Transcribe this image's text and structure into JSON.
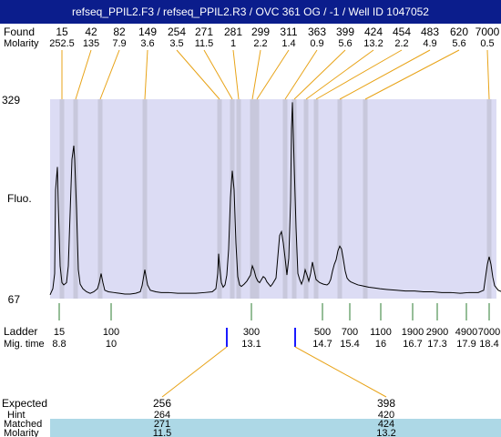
{
  "title": "refseq_PPIL2.F3 / refseq_PPIL2.R3 / OVC 361 OG / -1 / Well ID 1047052",
  "labels": {
    "found": "Found",
    "molarity": "Molarity",
    "fluo": "Fluo.",
    "ladder": "Ladder",
    "mig_time": "Mig. time",
    "expected": "Expected",
    "hint": "Hint",
    "matched": "Matched",
    "molarity_bottom": "Molarity"
  },
  "colors": {
    "title_bg": "#0b1d8c",
    "plot_bg": "#dcdcf4",
    "band": "#c8c8dc",
    "found_line": "#e8a317",
    "ladder_line": "#2e7d32",
    "marker": "#1a1aff",
    "row_highlight": "#add8e6"
  },
  "chart_data": {
    "type": "line",
    "ylim": [
      67,
      329
    ],
    "yticks": [
      "329",
      "67"
    ],
    "found_peaks": [
      {
        "size": "15",
        "molarity": "252.5"
      },
      {
        "size": "42",
        "molarity": "135"
      },
      {
        "size": "82",
        "molarity": "7.9"
      },
      {
        "size": "149",
        "molarity": "3.6"
      },
      {
        "size": "254",
        "molarity": "3.5"
      },
      {
        "size": "271",
        "molarity": "11.5"
      },
      {
        "size": "281",
        "molarity": "1"
      },
      {
        "size": "299",
        "molarity": "2.2"
      },
      {
        "size": "311",
        "molarity": "1.4"
      },
      {
        "size": "363",
        "molarity": "0.9"
      },
      {
        "size": "399",
        "molarity": "5.6"
      },
      {
        "size": "424",
        "molarity": "13.2"
      },
      {
        "size": "454",
        "molarity": "2.2"
      },
      {
        "size": "483",
        "molarity": "4.9"
      },
      {
        "size": "620",
        "molarity": "5.6"
      },
      {
        "size": "7000",
        "molarity": "0.5"
      }
    ],
    "ladder": [
      {
        "size": "15",
        "time": "8.8"
      },
      {
        "size": "100",
        "time": "10"
      },
      {
        "size": "300",
        "time": "13.1"
      },
      {
        "size": "500",
        "time": "14.7"
      },
      {
        "size": "700",
        "time": "15.4"
      },
      {
        "size": "1100",
        "time": "16"
      },
      {
        "size": "1900",
        "time": "16.7"
      },
      {
        "size": "2900",
        "time": "17.3"
      },
      {
        "size": "4900",
        "time": "17.9"
      },
      {
        "size": "7000",
        "time": "18.4"
      }
    ],
    "expected": [
      {
        "expected": "256",
        "hint": "264",
        "matched": "271",
        "molarity": "11.5"
      },
      {
        "expected": "398",
        "hint": "420",
        "matched": "424",
        "molarity": "13.2"
      }
    ],
    "trace": [
      [
        0,
        72
      ],
      [
        3,
        80
      ],
      [
        5,
        100
      ],
      [
        6,
        210
      ],
      [
        8,
        240
      ],
      [
        9,
        190
      ],
      [
        11,
        110
      ],
      [
        13,
        88
      ],
      [
        15,
        85
      ],
      [
        18,
        88
      ],
      [
        20,
        110
      ],
      [
        22,
        180
      ],
      [
        24,
        250
      ],
      [
        26,
        268
      ],
      [
        27,
        250
      ],
      [
        29,
        185
      ],
      [
        31,
        105
      ],
      [
        33,
        86
      ],
      [
        36,
        80
      ],
      [
        40,
        76
      ],
      [
        44,
        74
      ],
      [
        48,
        76
      ],
      [
        52,
        80
      ],
      [
        54,
        88
      ],
      [
        56,
        100
      ],
      [
        58,
        88
      ],
      [
        60,
        78
      ],
      [
        64,
        76
      ],
      [
        70,
        75
      ],
      [
        76,
        74
      ],
      [
        82,
        73
      ],
      [
        88,
        73
      ],
      [
        94,
        74
      ],
      [
        99,
        76
      ],
      [
        101,
        84
      ],
      [
        103,
        98
      ],
      [
        104,
        105
      ],
      [
        105,
        98
      ],
      [
        107,
        85
      ],
      [
        110,
        78
      ],
      [
        116,
        76
      ],
      [
        122,
        75
      ],
      [
        130,
        75
      ],
      [
        140,
        74
      ],
      [
        150,
        74
      ],
      [
        160,
        74
      ],
      [
        170,
        75
      ],
      [
        178,
        76
      ],
      [
        182,
        80
      ],
      [
        184,
        100
      ],
      [
        185,
        126
      ],
      [
        186,
        110
      ],
      [
        188,
        88
      ],
      [
        190,
        82
      ],
      [
        192,
        85
      ],
      [
        194,
        98
      ],
      [
        196,
        132
      ],
      [
        198,
        200
      ],
      [
        200,
        235
      ],
      [
        202,
        210
      ],
      [
        204,
        140
      ],
      [
        206,
        96
      ],
      [
        208,
        85
      ],
      [
        210,
        83
      ],
      [
        213,
        86
      ],
      [
        216,
        90
      ],
      [
        218,
        94
      ],
      [
        220,
        98
      ],
      [
        222,
        110
      ],
      [
        224,
        104
      ],
      [
        226,
        95
      ],
      [
        228,
        90
      ],
      [
        230,
        88
      ],
      [
        232,
        92
      ],
      [
        234,
        96
      ],
      [
        236,
        94
      ],
      [
        238,
        89
      ],
      [
        240,
        86
      ],
      [
        242,
        83
      ],
      [
        244,
        86
      ],
      [
        248,
        94
      ],
      [
        252,
        150
      ],
      [
        254,
        155
      ],
      [
        256,
        140
      ],
      [
        258,
        120
      ],
      [
        260,
        98
      ],
      [
        262,
        120
      ],
      [
        264,
        195
      ],
      [
        265,
        290
      ],
      [
        266,
        325
      ],
      [
        268,
        240
      ],
      [
        270,
        160
      ],
      [
        272,
        100
      ],
      [
        274,
        92
      ],
      [
        276,
        86
      ],
      [
        278,
        93
      ],
      [
        280,
        105
      ],
      [
        282,
        98
      ],
      [
        284,
        90
      ],
      [
        286,
        100
      ],
      [
        288,
        115
      ],
      [
        290,
        103
      ],
      [
        292,
        92
      ],
      [
        296,
        88
      ],
      [
        300,
        86
      ],
      [
        304,
        85
      ],
      [
        306,
        87
      ],
      [
        308,
        92
      ],
      [
        310,
        103
      ],
      [
        312,
        112
      ],
      [
        314,
        118
      ],
      [
        316,
        130
      ],
      [
        318,
        136
      ],
      [
        320,
        132
      ],
      [
        322,
        118
      ],
      [
        324,
        103
      ],
      [
        326,
        94
      ],
      [
        328,
        91
      ],
      [
        330,
        89
      ],
      [
        334,
        87
      ],
      [
        338,
        85
      ],
      [
        342,
        84
      ],
      [
        346,
        83
      ],
      [
        350,
        82
      ],
      [
        356,
        81
      ],
      [
        362,
        80
      ],
      [
        370,
        79
      ],
      [
        380,
        78
      ],
      [
        390,
        77
      ],
      [
        400,
        77
      ],
      [
        410,
        76
      ],
      [
        420,
        76
      ],
      [
        430,
        75
      ],
      [
        440,
        75
      ],
      [
        450,
        74
      ],
      [
        460,
        75
      ],
      [
        470,
        75
      ],
      [
        476,
        78
      ],
      [
        478,
        95
      ],
      [
        480,
        112
      ],
      [
        482,
        122
      ],
      [
        484,
        112
      ],
      [
        486,
        95
      ],
      [
        488,
        84
      ],
      [
        492,
        78
      ],
      [
        496,
        76
      ]
    ],
    "grid": false
  }
}
